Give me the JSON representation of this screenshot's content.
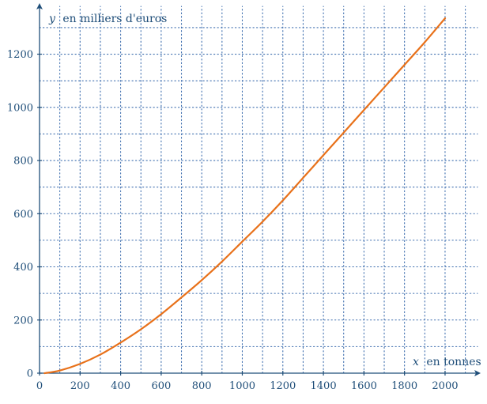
{
  "chart_data": {
    "type": "line",
    "xlabel_var": "x",
    "xlabel_unit": "en tonnes",
    "ylabel_var": "y",
    "ylabel_unit": "en milliers d'euros",
    "xlim": [
      0,
      2160
    ],
    "ylim": [
      0,
      1380
    ],
    "x_ticks": [
      0,
      200,
      400,
      600,
      800,
      1000,
      1200,
      1400,
      1600,
      1800,
      2000
    ],
    "y_ticks": [
      0,
      200,
      400,
      600,
      800,
      1000,
      1200
    ],
    "x_grid_step": 100,
    "y_grid_step": 100,
    "grid": true,
    "grid_style": "dotted",
    "colors": {
      "axis": "#1f4e79",
      "grid": "#3f6faf",
      "curve": "#e8711a"
    },
    "series": [
      {
        "x": [
          25,
          100,
          200,
          300,
          400,
          500,
          600,
          700,
          800,
          900,
          1000,
          1100,
          1200,
          1300,
          1400,
          1500,
          1600,
          1700,
          1800,
          1900,
          2000
        ],
        "values": [
          0,
          10,
          35,
          70,
          115,
          165,
          222,
          285,
          350,
          420,
          495,
          570,
          650,
          735,
          820,
          905,
          990,
          1075,
          1160,
          1245,
          1335
        ]
      }
    ]
  }
}
